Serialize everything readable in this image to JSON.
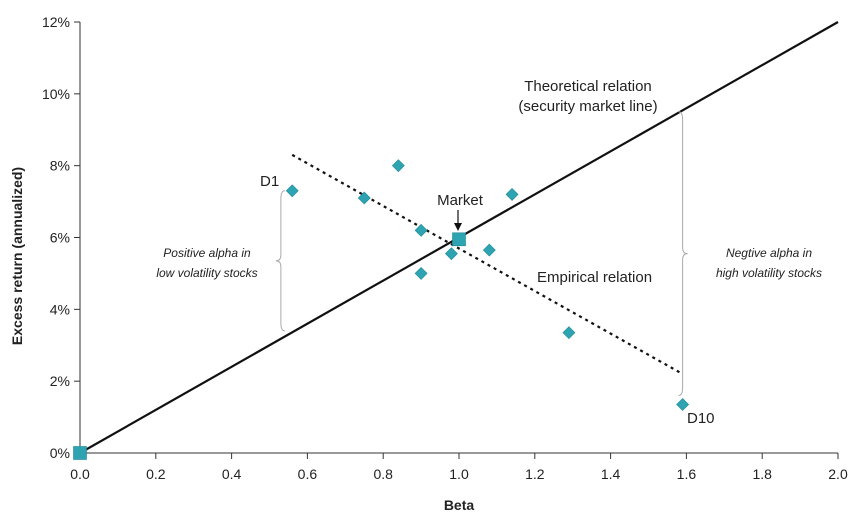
{
  "chart_data": {
    "type": "scatter",
    "title": "",
    "xlabel": "Beta",
    "ylabel": "Excess return (annualized)",
    "xlim": [
      0.0,
      2.0
    ],
    "ylim": [
      0,
      12
    ],
    "grid": false,
    "x_tick_labels": [
      "0.0",
      "0.2",
      "0.4",
      "0.6",
      "0.8",
      "1.0",
      "1.2",
      "1.4",
      "1.6",
      "1.8",
      "2.0"
    ],
    "x_ticks": [
      0.0,
      0.2,
      0.4,
      0.6,
      0.8,
      1.0,
      1.2,
      1.4,
      1.6,
      1.8,
      2.0
    ],
    "y_tick_labels": [
      "0%",
      "2%",
      "4%",
      "6%",
      "8%",
      "10%",
      "12%"
    ],
    "y_ticks": [
      0,
      2,
      4,
      6,
      8,
      10,
      12
    ],
    "series": [
      {
        "name": "",
        "marker": "diamond",
        "color": "#2ea3b1",
        "points": [
          {
            "x": 0.56,
            "y": 7.3,
            "label": "D1"
          },
          {
            "x": 0.75,
            "y": 7.1
          },
          {
            "x": 0.84,
            "y": 8.0
          },
          {
            "x": 0.9,
            "y": 6.2
          },
          {
            "x": 0.9,
            "y": 5.0
          },
          {
            "x": 0.98,
            "y": 5.55
          },
          {
            "x": 1.08,
            "y": 5.65
          },
          {
            "x": 1.14,
            "y": 7.2
          },
          {
            "x": 1.29,
            "y": 3.35
          },
          {
            "x": 1.59,
            "y": 1.35,
            "label": "D10"
          }
        ]
      },
      {
        "name": "",
        "marker": "square",
        "color": "#2ea3b1",
        "points": [
          {
            "x": 1.0,
            "y": 5.95,
            "label": "Market"
          },
          {
            "x": 0.0,
            "y": 0.0
          }
        ]
      }
    ],
    "lines": [
      {
        "name": "security market line",
        "style": "solid",
        "color": "#111111",
        "from": {
          "x": 0.0,
          "y": 0.0
        },
        "to": {
          "x": 2.0,
          "y": 12.0
        }
      },
      {
        "name": "empirical relation",
        "style": "dotted",
        "color": "#111111",
        "from": {
          "x": 0.56,
          "y": 8.3
        },
        "to": {
          "x": 1.59,
          "y": 2.2
        }
      }
    ],
    "annotations": {
      "theoretical_line1": "Theoretical relation",
      "theoretical_line2": "(security market line)",
      "empirical": "Empirical relation",
      "market": "Market",
      "d1": "D1",
      "d10": "D10",
      "pos_alpha_line1": "Positive alpha in",
      "pos_alpha_line2": "low volatility stocks",
      "neg_alpha_line1": "Negtive alpha in",
      "neg_alpha_line2": "high volatility stocks"
    },
    "brackets": [
      {
        "side": "left",
        "x": 0.53,
        "y_top": 7.3,
        "y_bottom": 3.4
      },
      {
        "side": "right",
        "x": 1.59,
        "y_top": 9.5,
        "y_bottom": 1.6
      }
    ]
  }
}
